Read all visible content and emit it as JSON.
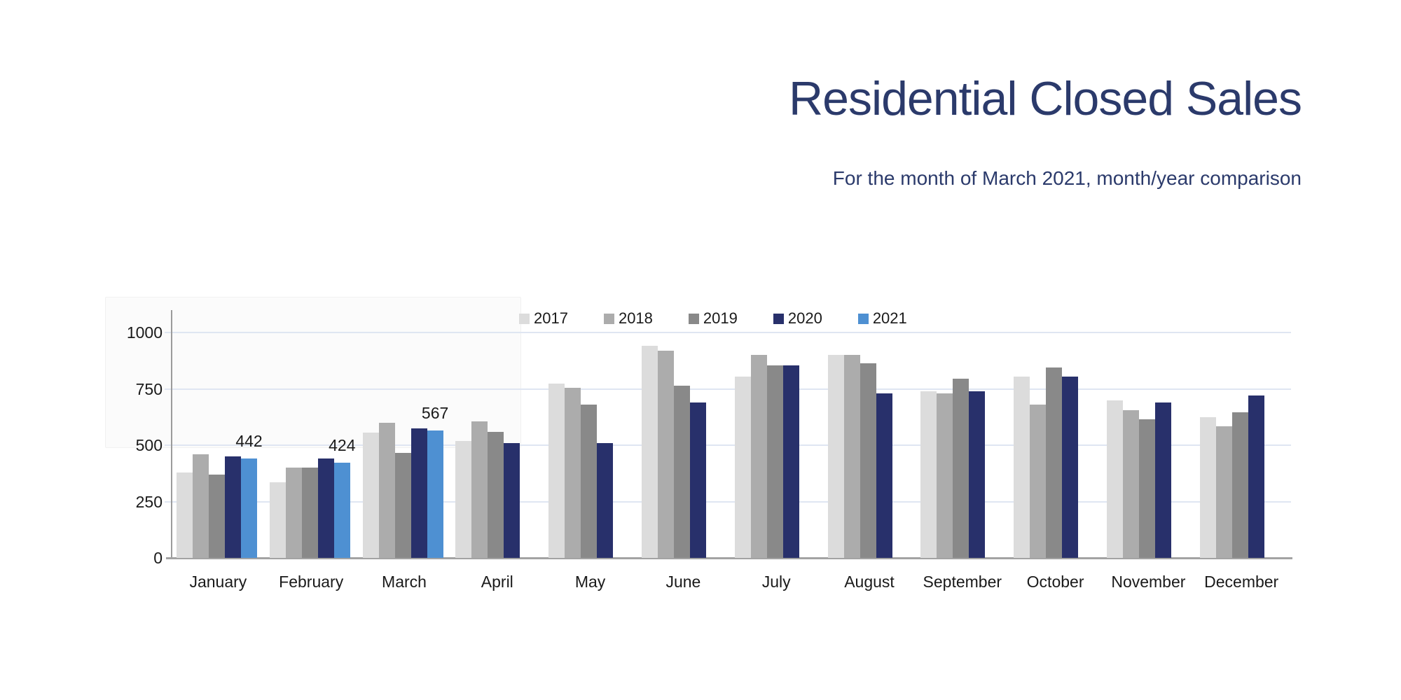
{
  "header": {
    "title": "Residential Closed Sales",
    "subtitle": "For the month of March 2021, month/year comparison",
    "title_color": "#2b3a6b"
  },
  "chart_data": {
    "type": "bar",
    "title": "Residential Closed Sales",
    "subtitle": "For the month of March 2021, month/year comparison",
    "categories": [
      "January",
      "February",
      "March",
      "April",
      "May",
      "June",
      "July",
      "August",
      "September",
      "October",
      "November",
      "December"
    ],
    "series": [
      {
        "name": "2017",
        "color": "#dcdcdc",
        "values": [
          380,
          335,
          555,
          520,
          775,
          940,
          805,
          900,
          740,
          805,
          700,
          625
        ]
      },
      {
        "name": "2018",
        "color": "#acacac",
        "values": [
          460,
          400,
          600,
          605,
          755,
          920,
          900,
          900,
          730,
          680,
          655,
          585
        ]
      },
      {
        "name": "2019",
        "color": "#898989",
        "values": [
          370,
          400,
          465,
          560,
          680,
          765,
          855,
          865,
          795,
          845,
          615,
          645
        ]
      },
      {
        "name": "2020",
        "color": "#28306b",
        "values": [
          450,
          440,
          575,
          510,
          510,
          690,
          855,
          730,
          740,
          805,
          690,
          720
        ]
      },
      {
        "name": "2021",
        "color": "#4e90d2",
        "values": [
          442,
          424,
          567,
          null,
          null,
          null,
          null,
          null,
          null,
          null,
          null,
          null
        ]
      }
    ],
    "annotations": [
      {
        "category": "January",
        "series": "2021",
        "text": "442",
        "value": 442
      },
      {
        "category": "February",
        "series": "2021",
        "text": "424",
        "value": 424
      },
      {
        "category": "March",
        "series": "2021",
        "text": "567",
        "value": 567
      }
    ],
    "ylabel": "",
    "xlabel": "",
    "yticks": [
      0,
      250,
      500,
      750,
      1000
    ],
    "ylim": [
      0,
      1100
    ],
    "grid": true,
    "legend_position": "top-center"
  }
}
